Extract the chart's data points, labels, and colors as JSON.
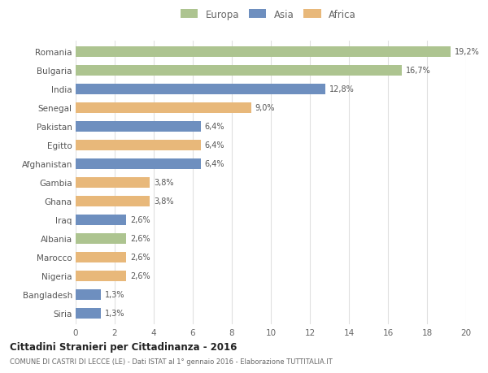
{
  "categories": [
    "Romania",
    "Bulgaria",
    "India",
    "Senegal",
    "Pakistan",
    "Egitto",
    "Afghanistan",
    "Gambia",
    "Ghana",
    "Iraq",
    "Albania",
    "Marocco",
    "Nigeria",
    "Bangladesh",
    "Siria"
  ],
  "values": [
    19.2,
    16.7,
    12.8,
    9.0,
    6.4,
    6.4,
    6.4,
    3.8,
    3.8,
    2.6,
    2.6,
    2.6,
    2.6,
    1.3,
    1.3
  ],
  "labels": [
    "19,2%",
    "16,7%",
    "12,8%",
    "9,0%",
    "6,4%",
    "6,4%",
    "6,4%",
    "3,8%",
    "3,8%",
    "2,6%",
    "2,6%",
    "2,6%",
    "2,6%",
    "1,3%",
    "1,3%"
  ],
  "continent": [
    "Europa",
    "Europa",
    "Asia",
    "Africa",
    "Asia",
    "Africa",
    "Asia",
    "Africa",
    "Africa",
    "Asia",
    "Europa",
    "Africa",
    "Africa",
    "Asia",
    "Asia"
  ],
  "colors": {
    "Europa": "#adc490",
    "Asia": "#6e8fbf",
    "Africa": "#e8b87a"
  },
  "legend_labels": [
    "Europa",
    "Asia",
    "Africa"
  ],
  "title_bold": "Cittadini Stranieri per Cittadinanza - 2016",
  "subtitle": "COMUNE DI CASTRI DI LECCE (LE) - Dati ISTAT al 1° gennaio 2016 - Elaborazione TUTTITALIA.IT",
  "xlim": [
    0,
    20
  ],
  "xticks": [
    0,
    2,
    4,
    6,
    8,
    10,
    12,
    14,
    16,
    18,
    20
  ],
  "background_color": "#ffffff",
  "grid_color": "#e0e0e0",
  "bar_height": 0.55
}
